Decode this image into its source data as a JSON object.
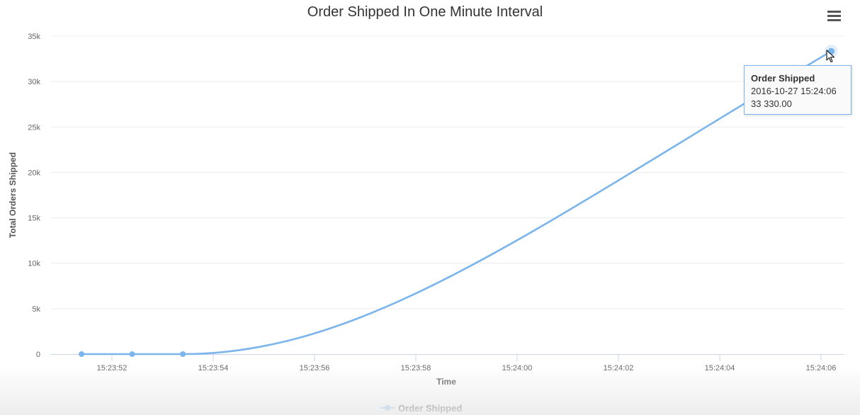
{
  "chart_data": {
    "type": "line",
    "title": "Order Shipped In One Minute Interval",
    "xlabel": "Time",
    "ylabel": "Total Orders Shipped",
    "x_ticks": [
      "15:23:52",
      "15:23:54",
      "15:23:56",
      "15:23:58",
      "15:24:00",
      "15:24:02",
      "15:24:04",
      "15:24:06"
    ],
    "y_ticks": [
      "0",
      "5k",
      "10k",
      "15k",
      "20k",
      "25k",
      "30k",
      "35k"
    ],
    "ylim": [
      0,
      35000
    ],
    "grid": true,
    "legend_position": "bottom-center",
    "series": [
      {
        "name": "Order Shipped",
        "color": "#7cb5ec",
        "points": [
          {
            "t": "15:23:51.4",
            "y": 0
          },
          {
            "t": "15:23:52.4",
            "y": 0
          },
          {
            "t": "15:23:53.4",
            "y": 0
          },
          {
            "t": "15:24:06.2",
            "y": 33330
          }
        ]
      }
    ],
    "tooltip": {
      "series": "Order Shipped",
      "datetime": "2016-10-27 15:24:06",
      "value": "33 330.00"
    }
  },
  "menu_icon": "hamburger-menu-icon"
}
